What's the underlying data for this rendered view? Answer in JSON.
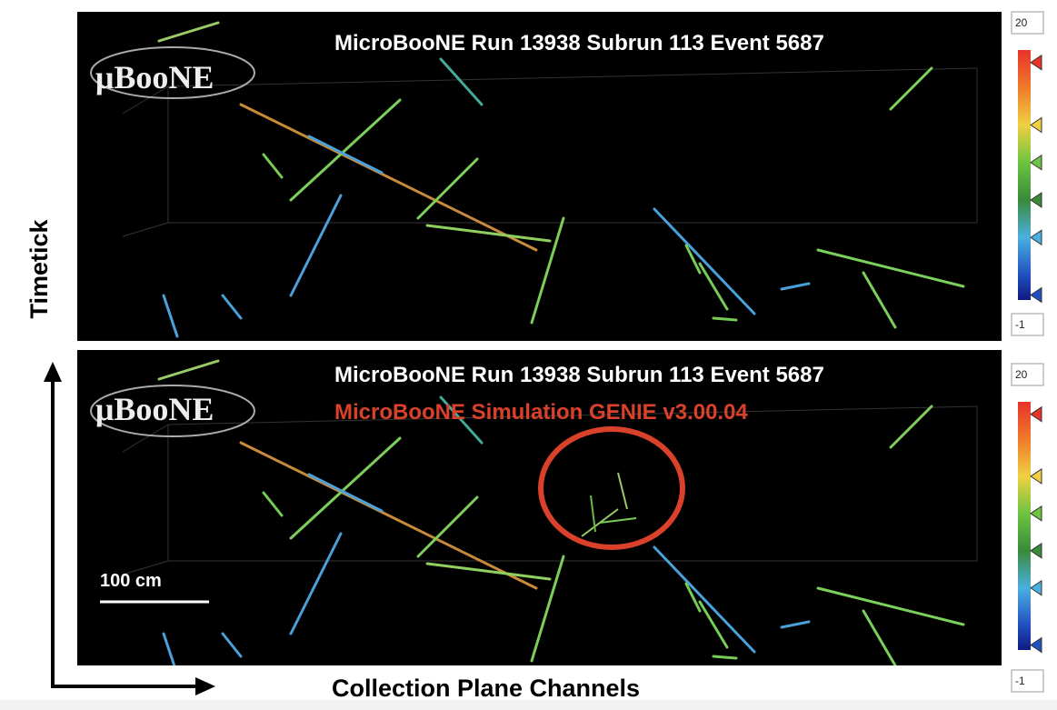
{
  "panels": [
    {
      "title": "MicroBooNE Run 13938 Subrun 113 Event 5687",
      "logo": "μBooNE",
      "colorbar": {
        "max": 20,
        "min": -1
      }
    },
    {
      "title": "MicroBooNE Run 13938 Subrun 113 Event 5687",
      "subtitle": "MicroBooNE Simulation GENIE v3.00.04",
      "logo": "μBooNE",
      "scale_bar": "100 cm",
      "colorbar": {
        "max": 20,
        "min": -1
      }
    }
  ],
  "axes": {
    "y_label": "Timetick",
    "x_label": "Collection Plane Channels"
  }
}
